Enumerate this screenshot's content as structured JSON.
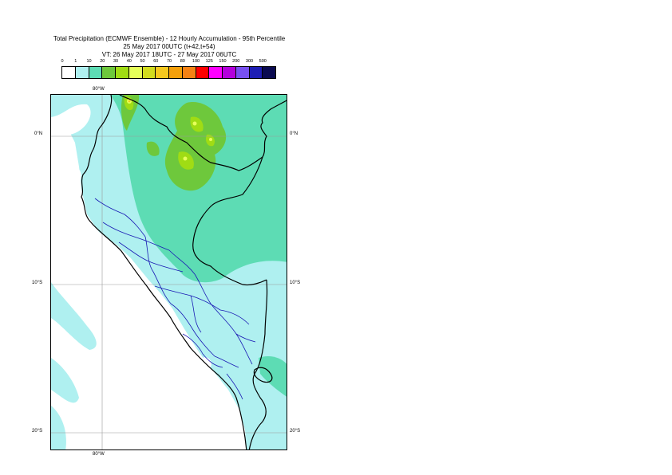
{
  "header": {
    "title_line1": "Total Precipitation (ECMWF Ensemble) - 12 Hourly Accumulation - 95th Percentile",
    "title_line2": "25 May 2017 00UTC (t+42,t+54)",
    "title_line3": "VT: 26 May 2017 18UTC - 27 May 2017 06UTC"
  },
  "legend": {
    "labels": [
      "0",
      "1",
      "10",
      "20",
      "30",
      "40",
      "50",
      "60",
      "70",
      "80",
      "100",
      "125",
      "150",
      "200",
      "300",
      "500"
    ],
    "colors": [
      "#ffffff",
      "#aff0f0",
      "#5ddcb4",
      "#6ec83c",
      "#a0dc14",
      "#e6ff5a",
      "#d2dc1e",
      "#f5c81e",
      "#f5a00a",
      "#f58214",
      "#ff0000",
      "#ff00ff",
      "#b400dc",
      "#7850f0",
      "#1e1eb4",
      "#0a0a50"
    ]
  },
  "map": {
    "longitude_label_top": "80°W",
    "longitude_label_bottom": "80°W",
    "latitude_labels": {
      "lat_0_left": "0°N",
      "lat_0_right": "0°N",
      "lat_10_left": "10°S",
      "lat_10_right": "10°S",
      "lat_20_left": "20°S",
      "lat_20_right": "20°S"
    }
  }
}
